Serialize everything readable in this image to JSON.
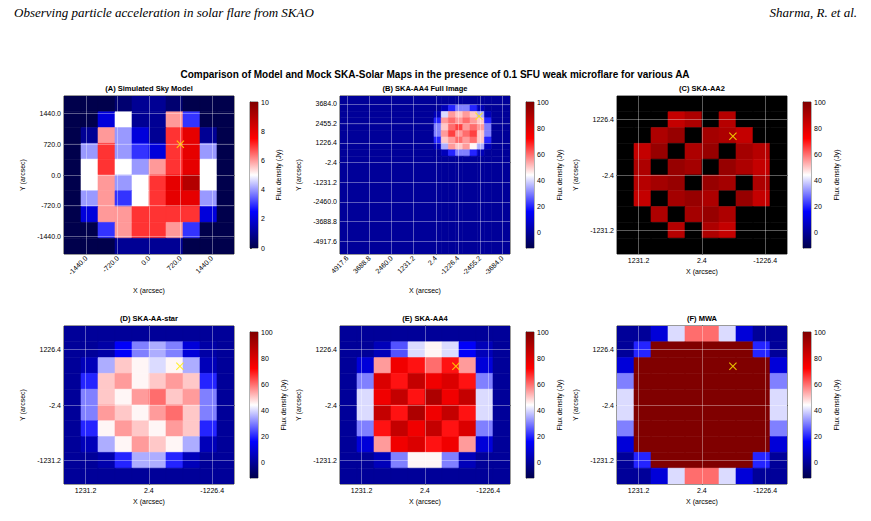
{
  "header": {
    "left": "Observing particle acceleration in solar flare from SKAO",
    "right": "Sharma, R. et al."
  },
  "title": "Comparison of Model and Mock SKA-Solar Maps in the presence of 0.1 SFU weak microflare for various AA",
  "chart_data": [
    {
      "type": "heatmap",
      "title": "(A) Simulated Sky Model",
      "xlabel": "X (arcsec)",
      "ylabel": "Y (arcsec)",
      "grid": true,
      "xlim": [
        -1950,
        1950
      ],
      "ylim": [
        -1850,
        1850
      ],
      "xticks": [
        {
          "value": -1440,
          "label": "-1440.0"
        },
        {
          "value": -720,
          "label": "-720.0"
        },
        {
          "value": 0,
          "label": "0.0"
        },
        {
          "value": 720,
          "label": "720.0"
        },
        {
          "value": 1440,
          "label": "1440.0"
        }
      ],
      "yticks": [
        {
          "value": 1440,
          "label": "1440.0"
        },
        {
          "value": 720,
          "label": "720.0"
        },
        {
          "value": 0,
          "label": "0.0"
        },
        {
          "value": -720,
          "label": "-720.0"
        },
        {
          "value": -1440,
          "label": "-1440.0"
        }
      ],
      "x_edges": [
        -1950,
        -1560,
        -1170,
        -780,
        -390,
        0,
        390,
        780,
        1170,
        1560,
        1950
      ],
      "y_edges": [
        1850,
        1480,
        1110,
        740,
        370,
        0,
        -370,
        -740,
        -1110,
        -1480,
        -1850
      ],
      "cells": [
        [
          0,
          0,
          0,
          0.5,
          1,
          1,
          0.5,
          0,
          0,
          0
        ],
        [
          0,
          0,
          2,
          5,
          1,
          1,
          6,
          3,
          0,
          0
        ],
        [
          0,
          1,
          6,
          4,
          2,
          1,
          7,
          8,
          1,
          0
        ],
        [
          0,
          4,
          7,
          4,
          3,
          2,
          7,
          8,
          4,
          0
        ],
        [
          0,
          5,
          7,
          5,
          4,
          6,
          7,
          8,
          5,
          0
        ],
        [
          0,
          5,
          6,
          4,
          5,
          7,
          8,
          9,
          5,
          0
        ],
        [
          0,
          4,
          6,
          3,
          5,
          7,
          8,
          8,
          4,
          0
        ],
        [
          0,
          2,
          6,
          6,
          7,
          7,
          7,
          7,
          2,
          0
        ],
        [
          0,
          0,
          3,
          6,
          7,
          7,
          6,
          3,
          0,
          0
        ],
        [
          0,
          0,
          0,
          1,
          1,
          1,
          1,
          0,
          0,
          0
        ]
      ],
      "colorbar": {
        "label": "Flux density (Jy)",
        "range": [
          0,
          10
        ],
        "ticks": [
          0,
          2,
          4,
          6,
          8,
          10
        ]
      },
      "series": [
        {
          "type": "scatter",
          "marker": "x",
          "color": "#ffee00",
          "x": [
            720
          ],
          "y": [
            720
          ]
        }
      ]
    },
    {
      "type": "heatmap",
      "title": "(B) SKA-AA4 Full Image",
      "xlabel": "X (arcsec)",
      "ylabel": "Y (arcsec)",
      "grid": true,
      "xlim": [
        5320,
        -4120
      ],
      "ylim": [
        -5730,
        4170
      ],
      "xticks": [
        4917.6,
        3688.8,
        {
          "value": 2460,
          "label": "2460.0"
        },
        1231.2,
        2.4,
        -1226.4,
        -2455.2,
        {
          "value": -3684,
          "label": "-3684.0"
        }
      ],
      "yticks": [
        {
          "value": 3684,
          "label": "3684.0"
        },
        2455.2,
        1226.4,
        -2.4,
        -1231.2,
        {
          "value": -2460,
          "label": "-2460.0"
        },
        -3688.8,
        -4917.6
      ],
      "x_edges": [
        5320,
        100,
        -300,
        -700,
        -1100,
        -1500,
        -1900,
        -2300,
        -2700,
        -3100,
        -4120
      ],
      "y_edges": [
        4170,
        3600,
        3200,
        2800,
        2400,
        2000,
        1600,
        1200,
        800,
        400,
        -5730
      ],
      "cells": [
        [
          0,
          0,
          0,
          0,
          0,
          0,
          0,
          0,
          0,
          0
        ],
        [
          0,
          0,
          5,
          20,
          30,
          30,
          20,
          5,
          0,
          0
        ],
        [
          0,
          5,
          40,
          55,
          50,
          55,
          50,
          35,
          5,
          0
        ],
        [
          0,
          20,
          55,
          60,
          55,
          60,
          55,
          50,
          20,
          0
        ],
        [
          0,
          30,
          50,
          60,
          65,
          55,
          60,
          55,
          30,
          0
        ],
        [
          0,
          30,
          55,
          65,
          55,
          60,
          65,
          50,
          30,
          0
        ],
        [
          0,
          20,
          50,
          55,
          60,
          55,
          60,
          50,
          20,
          0
        ],
        [
          0,
          5,
          35,
          55,
          50,
          55,
          45,
          35,
          5,
          0
        ],
        [
          0,
          0,
          5,
          20,
          30,
          30,
          20,
          5,
          0,
          0
        ],
        [
          0,
          0,
          0,
          0,
          0,
          0,
          0,
          0,
          0,
          0
        ]
      ],
      "colorbar": {
        "label": "Flux density (Jy)",
        "range": [
          -12,
          100
        ],
        "ticks": [
          0,
          20,
          40,
          60,
          80,
          100
        ]
      },
      "series": [
        {
          "type": "scatter",
          "marker": "x",
          "color": "#ffee00",
          "x": [
            -2400
          ],
          "y": [
            2900
          ]
        }
      ]
    },
    {
      "type": "heatmap",
      "title": "(C) SKA-AA2",
      "xlabel": "X (arcsec)",
      "ylabel": "Y (arcsec)",
      "grid": true,
      "xlim": [
        1650,
        -1650
      ],
      "ylim": [
        -1750,
        1750
      ],
      "xticks": [
        1231.2,
        2.4,
        -1226.4
      ],
      "yticks": [
        1226.4,
        -2.4,
        -1231.2
      ],
      "x_edges": [
        1650,
        1320,
        990,
        660,
        330,
        0,
        -330,
        -660,
        -990,
        -1320,
        -1650
      ],
      "y_edges": [
        1750,
        1400,
        1050,
        700,
        350,
        0,
        -350,
        -700,
        -1050,
        -1400,
        -1750
      ],
      "cells": [
        [
          null,
          null,
          null,
          null,
          null,
          null,
          null,
          null,
          null,
          null
        ],
        [
          null,
          null,
          null,
          85,
          90,
          null,
          88,
          null,
          null,
          null
        ],
        [
          null,
          null,
          90,
          95,
          null,
          92,
          90,
          85,
          null,
          null
        ],
        [
          null,
          85,
          95,
          null,
          90,
          95,
          null,
          92,
          88,
          null
        ],
        [
          null,
          90,
          null,
          95,
          92,
          null,
          95,
          90,
          85,
          null
        ],
        [
          null,
          88,
          92,
          95,
          null,
          95,
          92,
          null,
          90,
          null
        ],
        [
          null,
          85,
          null,
          92,
          95,
          90,
          null,
          95,
          85,
          null
        ],
        [
          null,
          null,
          90,
          null,
          92,
          95,
          90,
          null,
          null,
          null
        ],
        [
          null,
          null,
          null,
          88,
          null,
          90,
          85,
          null,
          null,
          null
        ],
        [
          null,
          null,
          null,
          null,
          null,
          null,
          null,
          null,
          null,
          null
        ]
      ],
      "colorbar": {
        "label": "Flux density (Jy)",
        "range": [
          -12,
          100
        ],
        "ticks": [
          0,
          20,
          40,
          60,
          80,
          100
        ]
      },
      "series": [
        {
          "type": "scatter",
          "marker": "x",
          "color": "#ffee00",
          "x": [
            -600
          ],
          "y": [
            860
          ]
        }
      ]
    },
    {
      "type": "heatmap",
      "title": "(D) SKA-AA-star",
      "xlabel": "X (arcsec)",
      "ylabel": "Y (arcsec)",
      "grid": true,
      "xlim": [
        1650,
        -1650
      ],
      "ylim": [
        -1750,
        1750
      ],
      "xticks": [
        1231.2,
        2.4,
        -1226.4
      ],
      "yticks": [
        1226.4,
        -2.4,
        -1231.2
      ],
      "x_edges": [
        1650,
        1320,
        990,
        660,
        330,
        0,
        -330,
        -660,
        -990,
        -1320,
        -1650
      ],
      "y_edges": [
        1750,
        1400,
        1050,
        700,
        350,
        0,
        -350,
        -700,
        -1050,
        -1400,
        -1750
      ],
      "cells": [
        [
          0,
          0,
          0,
          0,
          0,
          0,
          0,
          0,
          0,
          0
        ],
        [
          0,
          0,
          2,
          15,
          30,
          35,
          30,
          10,
          2,
          0
        ],
        [
          0,
          5,
          35,
          50,
          45,
          40,
          45,
          35,
          5,
          0
        ],
        [
          0,
          20,
          50,
          55,
          45,
          50,
          55,
          50,
          20,
          0
        ],
        [
          0,
          30,
          50,
          45,
          55,
          60,
          50,
          55,
          30,
          0
        ],
        [
          0,
          30,
          55,
          50,
          45,
          55,
          60,
          50,
          30,
          0
        ],
        [
          0,
          20,
          45,
          55,
          50,
          45,
          55,
          50,
          20,
          0
        ],
        [
          0,
          5,
          35,
          45,
          55,
          50,
          45,
          35,
          5,
          0
        ],
        [
          0,
          0,
          3,
          20,
          35,
          35,
          20,
          5,
          0,
          0
        ],
        [
          0,
          0,
          0,
          0,
          0,
          0,
          0,
          0,
          0,
          0
        ]
      ],
      "colorbar": {
        "label": "Flux density (Jy)",
        "range": [
          -12,
          100
        ],
        "ticks": [
          0,
          20,
          40,
          60,
          80,
          100
        ]
      },
      "series": [
        {
          "type": "scatter",
          "marker": "x",
          "color": "#ffee00",
          "x": [
            -600
          ],
          "y": [
            860
          ]
        }
      ]
    },
    {
      "type": "heatmap",
      "title": "(E) SKA-AA4",
      "xlabel": "X (arcsec)",
      "ylabel": "Y (arcsec)",
      "grid": true,
      "xlim": [
        1650,
        -1650
      ],
      "ylim": [
        -1750,
        1750
      ],
      "xticks": [
        1231.2,
        2.4,
        -1226.4
      ],
      "yticks": [
        1226.4,
        -2.4,
        -1231.2
      ],
      "x_edges": [
        1650,
        1320,
        990,
        660,
        330,
        0,
        -330,
        -660,
        -990,
        -1320,
        -1650
      ],
      "y_edges": [
        1750,
        1400,
        1050,
        700,
        350,
        0,
        -350,
        -700,
        -1050,
        -1400,
        -1750
      ],
      "cells": [
        [
          0,
          0,
          0,
          0,
          0,
          0,
          0,
          0,
          0,
          0
        ],
        [
          0,
          0,
          5,
          25,
          40,
          45,
          40,
          15,
          5,
          0
        ],
        [
          0,
          10,
          55,
          75,
          70,
          60,
          70,
          55,
          10,
          0
        ],
        [
          0,
          30,
          80,
          70,
          85,
          75,
          80,
          70,
          30,
          0
        ],
        [
          0,
          40,
          75,
          85,
          70,
          90,
          75,
          85,
          40,
          0
        ],
        [
          0,
          40,
          85,
          70,
          90,
          75,
          85,
          70,
          40,
          0
        ],
        [
          0,
          30,
          70,
          85,
          75,
          85,
          70,
          80,
          30,
          0
        ],
        [
          0,
          10,
          55,
          75,
          80,
          70,
          75,
          55,
          10,
          0
        ],
        [
          0,
          0,
          5,
          30,
          45,
          45,
          30,
          5,
          0,
          0
        ],
        [
          0,
          0,
          0,
          0,
          0,
          0,
          0,
          0,
          0,
          0
        ]
      ],
      "colorbar": {
        "label": "Flux density (Jy)",
        "range": [
          -12,
          100
        ],
        "ticks": [
          0,
          20,
          40,
          60,
          80,
          100
        ]
      },
      "series": [
        {
          "type": "scatter",
          "marker": "x",
          "color": "#ffee00",
          "x": [
            -600
          ],
          "y": [
            860
          ]
        }
      ]
    },
    {
      "type": "heatmap",
      "title": "(F) MWA",
      "xlabel": "X (arcsec)",
      "ylabel": "Y (arcsec)",
      "grid": true,
      "xlim": [
        1650,
        -1650
      ],
      "ylim": [
        -1750,
        1750
      ],
      "xticks": [
        1231.2,
        2.4,
        -1226.4
      ],
      "yticks": [
        1226.4,
        -2.4,
        -1231.2
      ],
      "x_edges": [
        1650,
        1320,
        990,
        660,
        330,
        0,
        -330,
        -660,
        -990,
        -1320,
        -1650
      ],
      "y_edges": [
        1750,
        1400,
        1050,
        700,
        350,
        0,
        -350,
        -700,
        -1050,
        -1400,
        -1750
      ],
      "cells": [
        [
          0,
          0,
          10,
          40,
          60,
          60,
          40,
          10,
          0,
          0
        ],
        [
          0,
          20,
          100,
          120,
          120,
          120,
          120,
          100,
          20,
          0
        ],
        [
          10,
          100,
          120,
          120,
          120,
          120,
          120,
          120,
          100,
          10
        ],
        [
          30,
          120,
          120,
          120,
          120,
          120,
          120,
          120,
          120,
          30
        ],
        [
          40,
          120,
          120,
          120,
          120,
          120,
          120,
          120,
          120,
          40
        ],
        [
          40,
          120,
          120,
          120,
          120,
          120,
          120,
          120,
          120,
          40
        ],
        [
          30,
          120,
          120,
          120,
          120,
          120,
          120,
          120,
          120,
          30
        ],
        [
          10,
          100,
          120,
          120,
          120,
          120,
          120,
          120,
          100,
          10
        ],
        [
          0,
          20,
          100,
          120,
          120,
          120,
          120,
          100,
          20,
          0
        ],
        [
          0,
          0,
          10,
          40,
          60,
          60,
          40,
          10,
          0,
          0
        ]
      ],
      "colorbar": {
        "label": "Flux density (Jy)",
        "range": [
          -12,
          100
        ],
        "ticks": [
          0,
          20,
          40,
          60,
          80,
          100
        ]
      },
      "series": [
        {
          "type": "scatter",
          "marker": "x",
          "color": "#ffee00",
          "x": [
            -600
          ],
          "y": [
            860
          ]
        }
      ]
    }
  ]
}
